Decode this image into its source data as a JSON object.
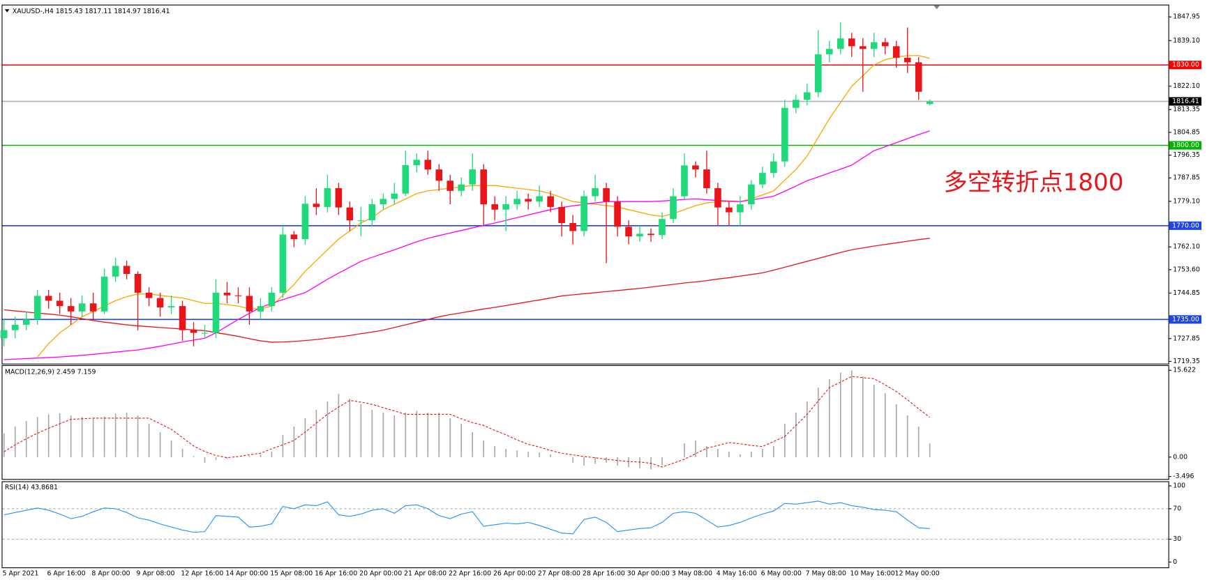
{
  "chart_data": [
    {
      "type": "candlestick",
      "title": "XAUUSD-,H4  1815.43 1817.11 1814.97 1816.41",
      "annotation": "多空转折点1800",
      "annotation_color": "#e8151b",
      "up_color": "#1fd97a",
      "down_color": "#e8151b",
      "categories": [
        "5 Apr 2021",
        null,
        null,
        null,
        "6 Apr 16:00",
        null,
        null,
        null,
        "8 Apr 00:00",
        null,
        null,
        null,
        "9 Apr 08:00",
        null,
        null,
        null,
        "12 Apr 16:00",
        null,
        null,
        null,
        "14 Apr 00:00",
        null,
        null,
        null,
        "15 Apr 08:00",
        null,
        null,
        null,
        "16 Apr 16:00",
        null,
        null,
        null,
        "20 Apr 00:00",
        null,
        null,
        null,
        "21 Apr 08:00",
        null,
        null,
        null,
        "22 Apr 16:00",
        null,
        null,
        null,
        "26 Apr 00:00",
        null,
        null,
        null,
        "27 Apr 08:00",
        null,
        null,
        null,
        "28 Apr 16:00",
        null,
        null,
        null,
        "30 Apr 00:00",
        null,
        null,
        null,
        "3 May 08:00",
        null,
        null,
        null,
        "4 May 16:00",
        null,
        null,
        null,
        "6 May 00:00",
        null,
        null,
        null,
        "7 May 08:00",
        null,
        null,
        null,
        "10 May 16:00",
        null,
        null,
        null,
        "12 May 00:00",
        null,
        null,
        null
      ],
      "open": [
        1728,
        1731,
        1733,
        1735,
        1743.8,
        1742,
        1740,
        1738,
        1741,
        1738,
        1751,
        1755,
        1752,
        1745,
        1743,
        1739.5,
        1740,
        1731,
        1730,
        1730,
        1745,
        1744,
        1743.8,
        1738,
        1740,
        1745,
        1766.7,
        1765,
        1778.2,
        1777,
        1784,
        1776.8,
        1772,
        1772,
        1778,
        1780,
        1782,
        1792.6,
        1794.6,
        1791,
        1786.8,
        1783,
        1785.4,
        1791,
        1778,
        1776,
        1778,
        1780,
        1779,
        1781,
        1777,
        1771,
        1768,
        1781,
        1784,
        1779,
        1769.6,
        1766,
        1767,
        1766.5,
        1772.5,
        1781,
        1792.5,
        1791,
        1784,
        1776.8,
        1775,
        1778,
        1785.4,
        1789.7,
        1794,
        1814,
        1817,
        1819.8,
        1834,
        1836,
        1839.9,
        1837,
        1836,
        1838.5,
        1837,
        1832.7,
        1831,
        1815.43
      ],
      "high": [
        1735,
        1736,
        1738,
        1746,
        1746,
        1745,
        1743,
        1744,
        1745,
        1754,
        1758,
        1757,
        1753,
        1747,
        1745,
        1744,
        1742,
        1734,
        1733,
        1750,
        1749,
        1747,
        1747,
        1743,
        1747,
        1770,
        1768,
        1781,
        1784,
        1789,
        1786,
        1779,
        1777,
        1780,
        1782,
        1786,
        1798,
        1797,
        1798,
        1793,
        1789,
        1788,
        1797,
        1793,
        1781,
        1781,
        1783,
        1782,
        1785,
        1783,
        1779,
        1774,
        1783,
        1789,
        1786,
        1781,
        1772,
        1770,
        1769,
        1775,
        1784,
        1797,
        1794,
        1798,
        1786,
        1779,
        1781,
        1787,
        1792,
        1797,
        1817,
        1819,
        1823,
        1843,
        1839,
        1846,
        1842,
        1840,
        1842,
        1840,
        1839,
        1844,
        1833,
        1817.11
      ],
      "low": [
        1725,
        1728,
        1731,
        1733,
        1739,
        1737,
        1733,
        1736,
        1735,
        1737,
        1749,
        1750,
        1731,
        1740,
        1736,
        1737,
        1727,
        1725,
        1728,
        1728,
        1741,
        1741,
        1733,
        1735,
        1738,
        1743,
        1762,
        1763,
        1774,
        1775,
        1774,
        1768,
        1766,
        1770,
        1776,
        1778,
        1781,
        1790,
        1789,
        1783,
        1778,
        1781,
        1783,
        1770,
        1772,
        1768,
        1776,
        1776,
        1777,
        1775,
        1766,
        1763,
        1766,
        1779,
        1756,
        1766,
        1763,
        1764,
        1764,
        1765,
        1771,
        1780,
        1788,
        1782,
        1770,
        1770,
        1770,
        1776,
        1784,
        1788,
        1792,
        1812,
        1815,
        1818,
        1831,
        1834,
        1833,
        1820,
        1833,
        1834,
        1829,
        1827,
        1817,
        1814.97
      ],
      "close": [
        1731,
        1733,
        1735,
        1743.8,
        1742,
        1740,
        1738,
        1741,
        1738,
        1751,
        1755,
        1752,
        1745,
        1743,
        1739.5,
        1740,
        1731,
        1730,
        1730,
        1745,
        1744,
        1743.8,
        1738,
        1740,
        1745,
        1766.7,
        1765,
        1778.2,
        1777,
        1784,
        1776.8,
        1772,
        1772,
        1778,
        1780,
        1782,
        1792.6,
        1794.6,
        1791,
        1786.8,
        1783,
        1785.4,
        1791,
        1778,
        1776,
        1778,
        1780,
        1779,
        1781,
        1777,
        1771,
        1768,
        1781,
        1784,
        1779,
        1769.6,
        1766,
        1767,
        1766.5,
        1772.5,
        1781,
        1792.5,
        1791,
        1784,
        1776.8,
        1775,
        1778,
        1785.4,
        1789.7,
        1794,
        1814,
        1817,
        1819.8,
        1834,
        1836,
        1839.9,
        1837,
        1836,
        1838.5,
        1837,
        1832.7,
        1831,
        1820,
        1816.41
      ],
      "series": [
        {
          "color": "#ffa500",
          "values": [
            null,
            null,
            null,
            1721,
            1726,
            1730,
            1733,
            1736,
            1738,
            1740,
            1742,
            1743.5,
            1744.5,
            1744.5,
            1744,
            1743.5,
            1743,
            1742,
            1741,
            1741,
            1740.5,
            1740,
            1739,
            1739,
            1740,
            1744,
            1748,
            1753,
            1757,
            1761,
            1765,
            1768,
            1771,
            1773,
            1776,
            1778,
            1780,
            1782,
            1783,
            1783.5,
            1784,
            1784.5,
            1785,
            1785,
            1785,
            1784.5,
            1784,
            1783.5,
            1783,
            1782,
            1780.5,
            1779,
            1778.5,
            1778,
            1777.5,
            1777,
            1776,
            1775,
            1774,
            1773.5,
            1774.5,
            1776,
            1777.5,
            1778.5,
            1779,
            1779,
            1779,
            1780,
            1781.5,
            1783,
            1787,
            1791,
            1796,
            1803,
            1810,
            1816,
            1822,
            1826,
            1830,
            1832,
            1833,
            1833.5,
            1833.5,
            1832.5
          ]
        },
        {
          "color": "#ff00ff",
          "values": [
            1720,
            1720.2,
            1720.4,
            1720.6,
            1720.8,
            1721,
            1721.3,
            1721.6,
            1722,
            1722.4,
            1722.8,
            1723.2,
            1723.6,
            1724.3,
            1725,
            1725.8,
            1726.6,
            1727.3,
            1728,
            1730,
            1732.5,
            1735,
            1737.3,
            1739.5,
            1741,
            1742.4,
            1743.7,
            1745,
            1747.5,
            1750,
            1752.3,
            1754.5,
            1756.7,
            1758.2,
            1759.6,
            1761,
            1762.5,
            1764,
            1765.3,
            1766.3,
            1767.3,
            1768.2,
            1769.2,
            1770.1,
            1771,
            1772,
            1773,
            1774,
            1775,
            1776,
            1776.8,
            1777.4,
            1778,
            1778.5,
            1779,
            1779,
            1779,
            1779,
            1779,
            1779.2,
            1779.5,
            1779.8,
            1780,
            1779.7,
            1779.4,
            1779.2,
            1779,
            1779.6,
            1780.3,
            1781,
            1782.9,
            1784.8,
            1786.8,
            1788.2,
            1789.7,
            1791.1,
            1792.6,
            1795.3,
            1798,
            1799.5,
            1801,
            1802.5,
            1804,
            1805.4
          ]
        },
        {
          "color": "#e8151b",
          "values": [
            1738.6,
            1738.2,
            1737.8,
            1737.4,
            1737,
            1736.6,
            1736,
            1735.3,
            1734.6,
            1734,
            1733.5,
            1733,
            1732.6,
            1732.3,
            1732,
            1731.7,
            1731.4,
            1731.1,
            1730.8,
            1730.1,
            1729.4,
            1728.7,
            1727.8,
            1727,
            1726.5,
            1726.6,
            1726.8,
            1727.1,
            1727.5,
            1728,
            1728.5,
            1729,
            1729.7,
            1730.3,
            1731,
            1732,
            1733,
            1734,
            1735,
            1736,
            1736.8,
            1737.5,
            1738.2,
            1738.9,
            1739.5,
            1740.2,
            1740.9,
            1741.6,
            1742.3,
            1743,
            1743.8,
            1744.2,
            1744.6,
            1745,
            1745.4,
            1745.8,
            1746.2,
            1746.6,
            1747.1,
            1747.6,
            1748.1,
            1748.6,
            1749,
            1749.5,
            1750.1,
            1750.6,
            1751.2,
            1751.8,
            1752.4,
            1753.4,
            1754.5,
            1755.6,
            1756.7,
            1757.8,
            1758.9,
            1760,
            1761,
            1761.7,
            1762.4,
            1763,
            1763.6,
            1764.2,
            1764.8,
            1765.3
          ]
        }
      ],
      "levels": [
        {
          "value": 1830,
          "label": "1830.00",
          "color": "#ff0000",
          "box": "#ff0000"
        },
        {
          "value": 1816.41,
          "color": "#a9b4be",
          "box": "#000000"
        },
        {
          "value": 1800,
          "label": "1800.00",
          "color": "#00b400",
          "box": "#00b400"
        },
        {
          "value": 1770,
          "label": "1770.00",
          "color": "#1f45e0",
          "box": "#1f45e0"
        },
        {
          "value": 1735,
          "label": "1735.00",
          "color": "#1f45e0",
          "box": "#1f45e0"
        }
      ],
      "ylim": [
        1718.5,
        1852.25
      ],
      "yticks": [
        1847.95,
        {
          "value": 1839.1,
          "label": "1839.10"
        },
        {
          "value": 1822.1,
          "label": "1822.10"
        },
        1813.35,
        1804.85,
        1796.35,
        1787.85,
        {
          "value": 1779.1,
          "label": "1779.10"
        },
        {
          "value": 1762.1,
          "label": "1762.10"
        },
        {
          "value": 1753.6,
          "label": "1753.60"
        },
        1744.85,
        1727.85,
        1719.35
      ]
    },
    {
      "type": "macd",
      "title": "MACD(12,26,9) 2.459 7.159",
      "histogram_color": "#a8a8a8",
      "signal_color": "#e8151b",
      "histogram": [
        4.3,
        5.5,
        6.5,
        7.2,
        7.7,
        7.9,
        7.5,
        7.2,
        7,
        7.3,
        7.8,
        8,
        7.5,
        6,
        4.5,
        3,
        1.5,
        0.2,
        -1,
        -0.5,
        -0.3,
        0,
        0.2,
        0.5,
        1,
        4,
        5.5,
        7,
        8.5,
        10,
        11.4,
        10.5,
        9.5,
        8.5,
        8,
        7.5,
        8,
        8.3,
        8,
        8,
        7,
        6,
        4.5,
        3,
        2,
        1.5,
        1.2,
        1,
        0.8,
        0.5,
        0,
        -1,
        -1.5,
        -1.2,
        -1,
        -1.5,
        -1.8,
        -2,
        -2.2,
        -1.5,
        0,
        2.5,
        3,
        2,
        1.5,
        1,
        0.5,
        1,
        1.5,
        2,
        6,
        8,
        10,
        12.5,
        14,
        15.2,
        15.6,
        14.5,
        13,
        11.5,
        9.5,
        7.5,
        5.5,
        2.459
      ],
      "signal": [
        0.95,
        2.2,
        3.3,
        4.3,
        5.2,
        6,
        6.8,
        6.9,
        7,
        7,
        7,
        7,
        7,
        7,
        6,
        5,
        3.5,
        2,
        1,
        0.3,
        -0.1,
        0.1,
        0.4,
        0.7,
        1.5,
        2.2,
        3,
        4.5,
        6.1,
        7.7,
        9,
        10.2,
        9.9,
        9.5,
        8.9,
        8.3,
        7.7,
        7.7,
        7.7,
        7.7,
        7.7,
        6.9,
        6.2,
        5.7,
        4.8,
        4,
        3.1,
        2.3,
        1.8,
        1.2,
        0.7,
        0.4,
        0.1,
        -0.1,
        -0.4,
        -0.6,
        -0.8,
        -0.9,
        -1.1,
        -1.8,
        -1.1,
        -0.4,
        0.6,
        1.6,
        2.1,
        2.6,
        2.4,
        2.1,
        1.9,
        2.8,
        3.7,
        5.7,
        7.7,
        10.1,
        12.5,
        13.5,
        14.5,
        14.3,
        14.1,
        13,
        11.8,
        10.3,
        8.7,
        7.159
      ],
      "ylim": [
        -3.8,
        16.4
      ],
      "yticks": [
        15.622,
        {
          "value": 0,
          "label": "0.00"
        },
        -3.496
      ]
    },
    {
      "type": "line",
      "title": "RSI(14) 43.8681",
      "color": "#1e90ff",
      "values": [
        62,
        65,
        68,
        71,
        68,
        63,
        57,
        60,
        66,
        71,
        70,
        65,
        58,
        55,
        50,
        46,
        42,
        39,
        40,
        61,
        60,
        59,
        46,
        47,
        50,
        73,
        70,
        75,
        74,
        79,
        62,
        60,
        63,
        68,
        70,
        64,
        74,
        75,
        70,
        61,
        57,
        63,
        66,
        47,
        49,
        51,
        50,
        52,
        48,
        43,
        38,
        37,
        56,
        59,
        52,
        40,
        42,
        44,
        45,
        52,
        64,
        66,
        64,
        55,
        46,
        48,
        52,
        58,
        63,
        67,
        77,
        76,
        78,
        80,
        76,
        78,
        74,
        72,
        69,
        68,
        66,
        55,
        45,
        43.8681
      ],
      "levels": [
        70,
        30
      ],
      "ylim": [
        -6,
        105
      ],
      "yticks": [
        100,
        70,
        30,
        0
      ]
    }
  ]
}
